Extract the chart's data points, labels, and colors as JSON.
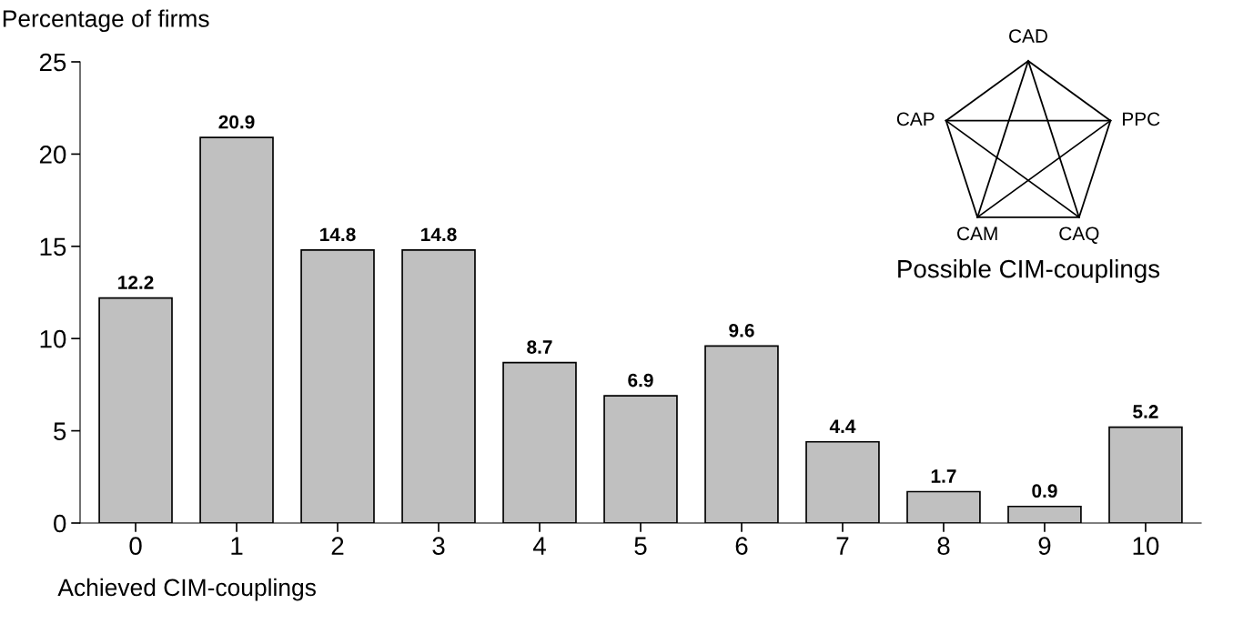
{
  "chart_data": {
    "type": "bar",
    "ylabel": "Percentage of firms",
    "xlabel": "Achieved CIM-couplings",
    "categories": [
      "0",
      "1",
      "2",
      "3",
      "4",
      "5",
      "6",
      "7",
      "8",
      "9",
      "10"
    ],
    "values": [
      12.2,
      20.9,
      14.8,
      14.8,
      8.7,
      6.9,
      9.6,
      4.4,
      1.7,
      0.9,
      5.2
    ],
    "color": "#c0c0c0",
    "data_labels": true,
    "ylim": [
      0,
      25
    ],
    "yticks": [
      0,
      5,
      10,
      15,
      20,
      25
    ],
    "grid": false,
    "legend": false,
    "annotations": [
      "CAD",
      "PPC",
      "CAQ",
      "CAM",
      "CAP",
      "Possible CIM-couplings"
    ]
  }
}
